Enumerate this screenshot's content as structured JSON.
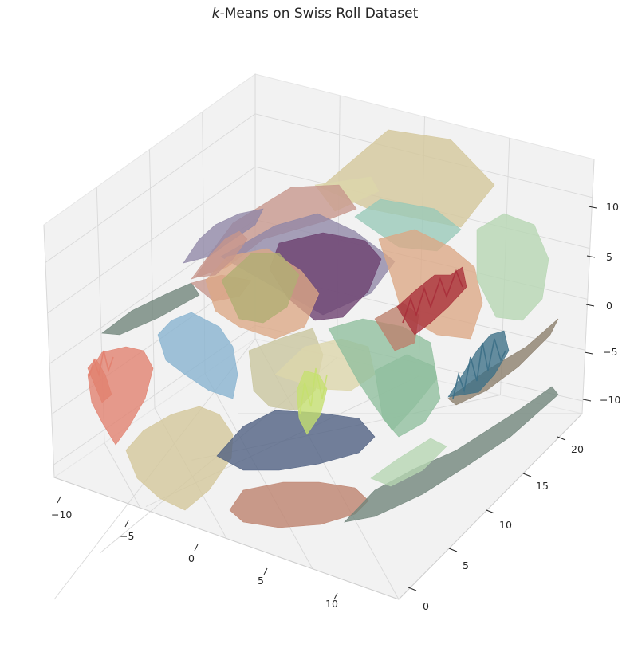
{
  "title": {
    "italic_prefix": "k",
    "rest": "-Means on Swiss Roll Dataset"
  },
  "chart_data": {
    "type": "surface",
    "title": "k-Means on Swiss Roll Dataset",
    "projection": "3d",
    "grid": true,
    "legend": "none",
    "x_ticks": [
      "−10",
      "−5",
      "0",
      "5",
      "10"
    ],
    "y_ticks": [
      "0",
      "5",
      "10",
      "15",
      "20"
    ],
    "z_ticks": [
      "10",
      "5",
      "0",
      "−5",
      "−10"
    ],
    "xlim": [
      -11,
      14
    ],
    "ylim": [
      0,
      22
    ],
    "zlim": [
      -12,
      14
    ],
    "colors": {
      "pane": "#f2f2f2",
      "grid": "#d9d9d9",
      "clusters": [
        "#d4c79a",
        "#c7968c",
        "#8f86a6",
        "#6b3f6e",
        "#98c9b8",
        "#dca885",
        "#b6d6b2",
        "#e2806e",
        "#86b2cf",
        "#b0ae73",
        "#c9c59d",
        "#8fbf9d",
        "#3c6f86",
        "#8b7d6a",
        "#dcd6ab",
        "#4d5e80",
        "#bc806c",
        "#70847a",
        "#c5e06f",
        "#a82f3a"
      ]
    }
  }
}
